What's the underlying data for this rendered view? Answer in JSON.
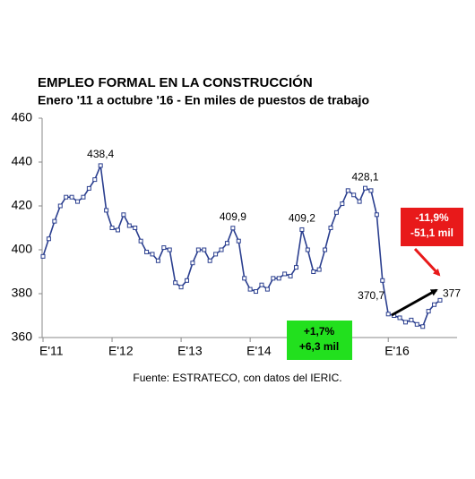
{
  "chart_data": {
    "type": "line",
    "title": "EMPLEO FORMAL EN LA CONSTRUCCIÓN",
    "subtitle": "Enero '11 a octubre '16 - En miles de puestos de trabajo",
    "source": "Fuente: ESTRATECO, con datos del IERIC.",
    "categories": [
      "E'11",
      null,
      null,
      null,
      null,
      null,
      null,
      null,
      null,
      null,
      null,
      null,
      "E'12",
      null,
      null,
      null,
      null,
      null,
      null,
      null,
      null,
      null,
      null,
      null,
      "E'13",
      null,
      null,
      null,
      null,
      null,
      null,
      null,
      null,
      null,
      null,
      null,
      "E'14",
      null,
      null,
      null,
      null,
      null,
      null,
      null,
      null,
      null,
      null,
      null,
      null,
      null,
      null,
      null,
      null,
      null,
      null,
      null,
      null,
      null,
      null,
      null,
      "E'16",
      null,
      null,
      null,
      null,
      null,
      null,
      null,
      null,
      null
    ],
    "series": [
      {
        "name": "Empleo formal",
        "color": "#2b3f8f",
        "values": [
          397,
          405,
          413,
          420,
          424,
          424,
          422,
          424,
          428,
          432,
          438.4,
          418,
          410,
          409,
          416,
          411,
          410,
          404,
          399,
          398,
          395,
          401,
          400,
          385,
          383,
          386,
          394,
          400,
          400,
          395,
          398,
          400,
          403,
          409.9,
          404,
          387,
          382,
          381,
          384,
          382,
          387,
          387,
          389,
          388,
          392,
          409.2,
          400,
          390,
          391,
          400,
          410,
          417,
          421,
          427,
          425,
          422,
          428.1,
          427,
          416,
          386,
          370.7,
          370,
          369,
          367,
          368,
          366,
          365,
          372,
          375,
          377
        ],
        "value_labels": [
          null,
          null,
          null,
          null,
          null,
          null,
          null,
          null,
          null,
          null,
          "438,4",
          null,
          null,
          null,
          null,
          null,
          null,
          null,
          null,
          null,
          null,
          null,
          null,
          null,
          null,
          null,
          null,
          null,
          null,
          null,
          null,
          null,
          null,
          "409,9",
          null,
          null,
          null,
          null,
          null,
          null,
          null,
          null,
          null,
          null,
          null,
          "409,2",
          null,
          null,
          null,
          null,
          null,
          null,
          null,
          null,
          null,
          null,
          "428,1",
          null,
          null,
          null,
          "370,7",
          null,
          null,
          null,
          null,
          null,
          null,
          null,
          null,
          "377"
        ]
      }
    ],
    "ylim": [
      360,
      460
    ],
    "yticks": [
      360,
      380,
      400,
      420,
      440,
      460
    ],
    "grid": false,
    "red_box": [
      "-11,9%",
      "-51,1 mil"
    ],
    "red_box_color": "#e8191a",
    "green_box": [
      "+1,7%",
      "+6,3 mil"
    ],
    "green_box_color": "#22e01e"
  }
}
